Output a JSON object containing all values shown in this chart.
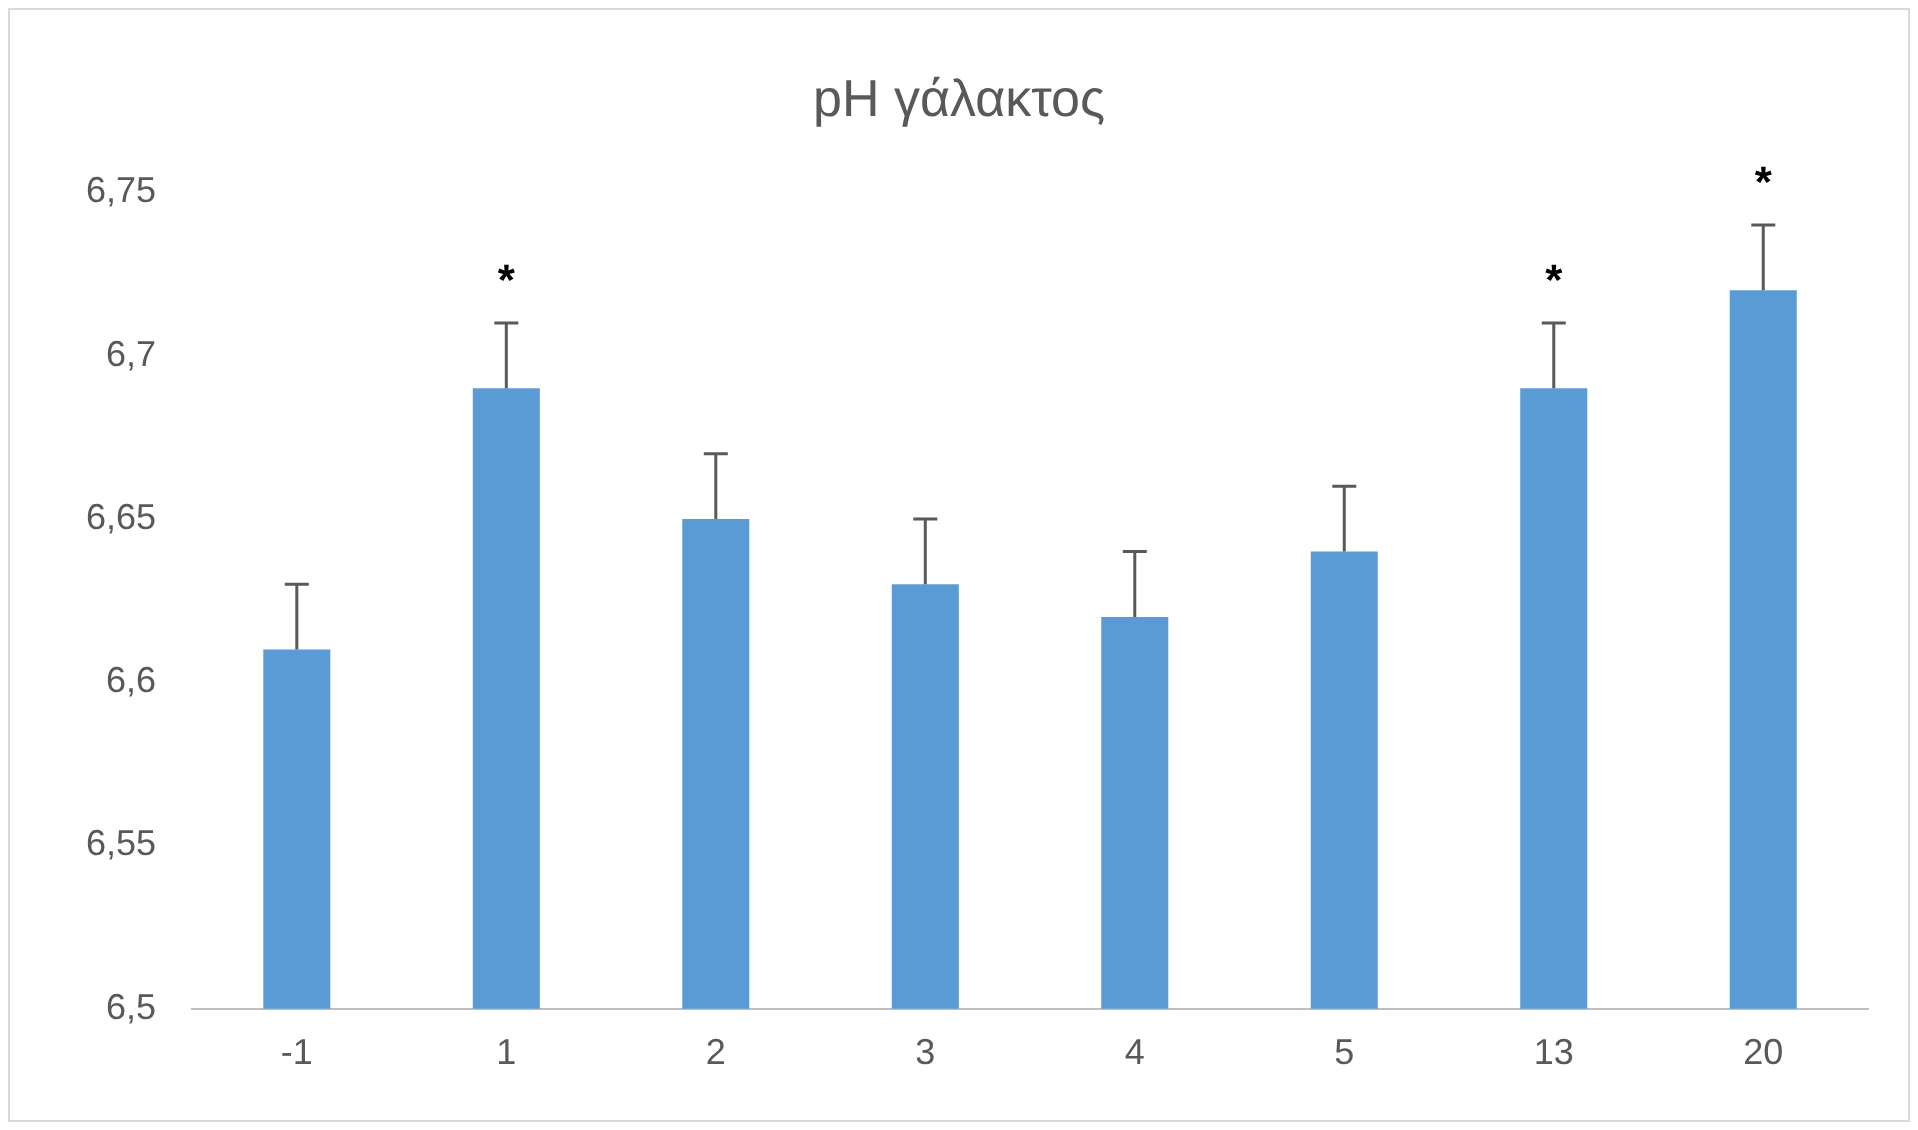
{
  "chart_data": {
    "type": "bar",
    "title": "pH γάλακτος",
    "categories": [
      "-1",
      "1",
      "2",
      "3",
      "4",
      "5",
      "13",
      "20"
    ],
    "values": [
      6.61,
      6.69,
      6.65,
      6.63,
      6.62,
      6.64,
      6.69,
      6.72
    ],
    "color": "#5b9bd5",
    "errors": [
      [
        6.61,
        6.63
      ],
      [
        6.69,
        6.71
      ],
      [
        6.65,
        6.67
      ],
      [
        6.63,
        6.65
      ],
      [
        6.62,
        6.64
      ],
      [
        6.64,
        6.66
      ],
      [
        6.69,
        6.71
      ],
      [
        6.72,
        6.74
      ]
    ],
    "ylim": [
      6.5,
      6.75
    ],
    "yticks": [
      {
        "value": 6.5,
        "label": "6,5"
      },
      {
        "value": 6.55,
        "label": "6,55"
      },
      {
        "value": 6.6,
        "label": "6,6"
      },
      {
        "value": 6.65,
        "label": "6,65"
      },
      {
        "value": 6.7,
        "label": "6,7"
      },
      {
        "value": 6.75,
        "label": "6,75"
      }
    ],
    "grid": false,
    "legend": false,
    "annotations": [
      {
        "text": "*",
        "x": "1",
        "y": 6.71
      },
      {
        "text": "*",
        "x": "13",
        "y": 6.71
      },
      {
        "text": "*",
        "x": "20",
        "y": 6.74
      }
    ]
  }
}
